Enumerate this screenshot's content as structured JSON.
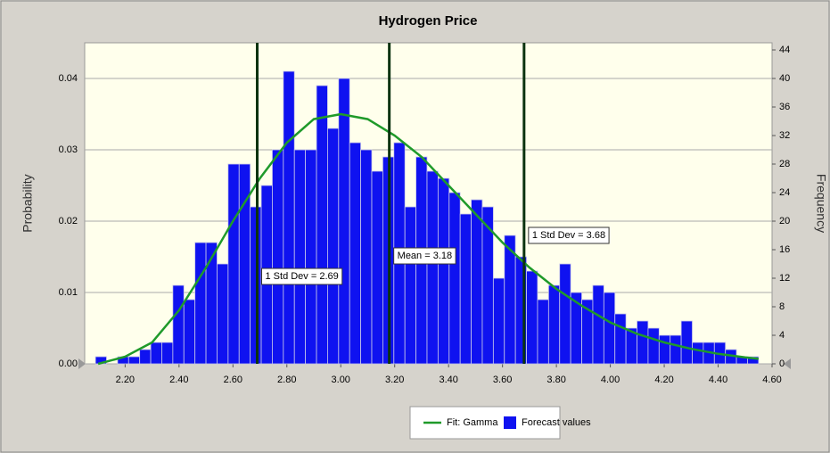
{
  "chart_data": {
    "type": "histogram",
    "title": "Hydrogen Price",
    "ylabel": "Probability",
    "y2label": "Frequency",
    "bins": [
      2.09,
      2.131,
      2.172,
      2.213,
      2.254,
      2.295,
      2.336,
      2.377,
      2.418,
      2.459,
      2.5,
      2.541,
      2.582,
      2.623,
      2.664,
      2.705,
      2.746,
      2.787,
      2.828,
      2.869,
      2.91,
      2.951,
      2.992,
      3.033,
      3.074,
      3.115,
      3.156,
      3.197,
      3.238,
      3.279,
      3.32,
      3.361,
      3.402,
      3.443,
      3.484,
      3.525,
      3.566,
      3.607,
      3.648,
      3.689,
      3.73,
      3.771,
      3.812,
      3.853,
      3.894,
      3.935,
      3.976,
      4.017,
      4.058,
      4.099,
      4.14,
      4.181,
      4.222,
      4.263,
      4.304,
      4.345,
      4.386,
      4.427,
      4.468,
      4.509,
      4.55
    ],
    "series": [
      {
        "name": "Forecast values",
        "color": "#0f12f0",
        "axis": "y2",
        "values": [
          1,
          0,
          1,
          1,
          2,
          3,
          3,
          11,
          9,
          17,
          17,
          14,
          28,
          28,
          22,
          25,
          30,
          41,
          30,
          30,
          39,
          33,
          40,
          31,
          30,
          27,
          29,
          31,
          22,
          29,
          27,
          26,
          24,
          21,
          23,
          22,
          12,
          18,
          15,
          13,
          9,
          11,
          14,
          10,
          9,
          11,
          10,
          7,
          5,
          6,
          5,
          4,
          4,
          6,
          3,
          3,
          3,
          2,
          1,
          1
        ]
      },
      {
        "name": "Fit: Gamma",
        "type": "line",
        "color": "#1f9a2a",
        "x": [
          2.1,
          2.2,
          2.3,
          2.4,
          2.5,
          2.6,
          2.7,
          2.8,
          2.9,
          3.0,
          3.1,
          3.2,
          3.3,
          3.4,
          3.5,
          3.6,
          3.7,
          3.8,
          3.9,
          4.0,
          4.1,
          4.2,
          4.3,
          4.4,
          4.5,
          4.55
        ],
        "values": [
          0.0,
          0.001,
          0.003,
          0.0075,
          0.0135,
          0.02,
          0.026,
          0.031,
          0.0343,
          0.035,
          0.0343,
          0.032,
          0.029,
          0.025,
          0.021,
          0.017,
          0.0135,
          0.0105,
          0.008,
          0.0058,
          0.0042,
          0.003,
          0.0021,
          0.0014,
          0.0009,
          0.0007
        ]
      }
    ],
    "annotations": [
      {
        "x": 2.69,
        "label": "1 Std Dev = 2.69"
      },
      {
        "x": 3.18,
        "label": "Mean = 3.18"
      },
      {
        "x": 3.68,
        "label": "1 Std Dev = 3.68"
      }
    ],
    "xlim": [
      2.05,
      4.6
    ],
    "xticks": [
      {
        "value": 2.2,
        "label": "2.20"
      },
      {
        "value": 2.4,
        "label": "2.40"
      },
      {
        "value": 2.6,
        "label": "2.60"
      },
      {
        "value": 2.8,
        "label": "2.80"
      },
      {
        "value": 3.0,
        "label": "3.00"
      },
      {
        "value": 3.2,
        "label": "3.20"
      },
      {
        "value": 3.4,
        "label": "3.40"
      },
      {
        "value": 3.6,
        "label": "3.60"
      },
      {
        "value": 3.8,
        "label": "3.80"
      },
      {
        "value": 4.0,
        "label": "4.00"
      },
      {
        "value": 4.2,
        "label": "4.20"
      },
      {
        "value": 4.4,
        "label": "4.40"
      },
      {
        "value": 4.6,
        "label": "4.60"
      }
    ],
    "ylim": [
      0,
      0.045
    ],
    "yticks": [
      {
        "value": 0,
        "label": "0.00"
      },
      0.01,
      0.02,
      0.03,
      0.04
    ],
    "y2lim": [
      0,
      45
    ],
    "y2ticks": [
      0,
      4,
      8,
      12,
      16,
      20,
      24,
      28,
      32,
      36,
      40,
      44
    ],
    "grid": true,
    "legend": "bottom"
  }
}
